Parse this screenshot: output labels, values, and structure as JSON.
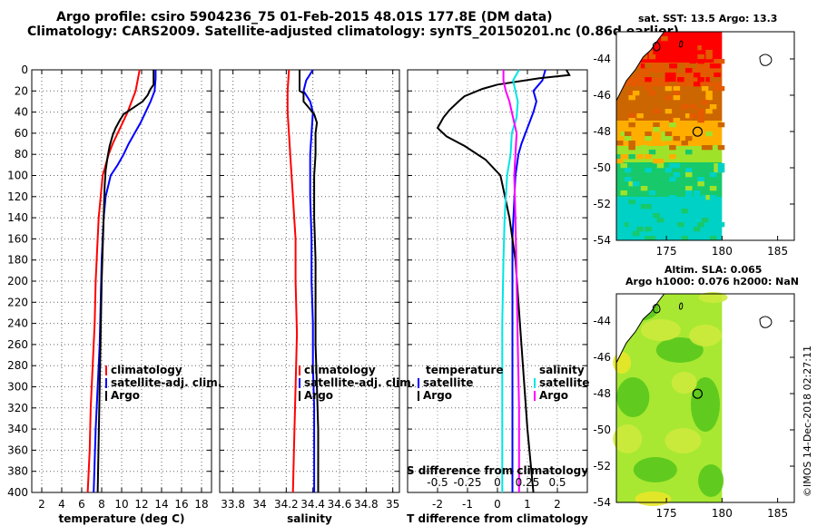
{
  "title": {
    "line1": "Argo profile: csiro 5904236_75 01-Feb-2015 48.01S 177.8E (DM data)",
    "line2": "Climatology: CARS2009. Satellite-adjusted climatology: synTS_20150201.nc (0.86d earlier)"
  },
  "credit": "©IMOS 14-Dec-2018 02:27:11",
  "colors": {
    "climatology": "#ff0000",
    "satellite": "#0000ff",
    "argo": "#000000",
    "sal_satellite": "#00e5e5",
    "sal_clim": "#ff00ff"
  },
  "chart_data": [
    {
      "type": "line",
      "name": "temperature-profile",
      "xlabel": "temperature (deg C)",
      "ylabel": "",
      "xlim": [
        1,
        19
      ],
      "ylim": [
        400,
        0
      ],
      "xticks": [
        2,
        4,
        6,
        8,
        10,
        12,
        14,
        16,
        18
      ],
      "yticks": [
        0,
        20,
        40,
        60,
        80,
        100,
        120,
        140,
        160,
        180,
        200,
        220,
        240,
        260,
        280,
        300,
        320,
        340,
        360,
        380,
        400
      ],
      "grid": true,
      "legend": {
        "position": "lower-right",
        "entries": [
          "climatology",
          "satellite-adj. clim.",
          "Argo"
        ]
      },
      "series": [
        {
          "name": "climatology",
          "color": "#ff0000",
          "points": [
            [
              11.8,
              0
            ],
            [
              11.6,
              10
            ],
            [
              11.4,
              20
            ],
            [
              11.0,
              30
            ],
            [
              10.6,
              40
            ],
            [
              10.1,
              50
            ],
            [
              9.6,
              60
            ],
            [
              9.1,
              70
            ],
            [
              8.7,
              80
            ],
            [
              8.4,
              90
            ],
            [
              8.1,
              100
            ],
            [
              7.9,
              120
            ],
            [
              7.7,
              140
            ],
            [
              7.6,
              160
            ],
            [
              7.5,
              180
            ],
            [
              7.4,
              200
            ],
            [
              7.3,
              240
            ],
            [
              7.1,
              280
            ],
            [
              6.9,
              320
            ],
            [
              6.8,
              360
            ],
            [
              6.6,
              400
            ]
          ]
        },
        {
          "name": "satellite-adj. clim.",
          "color": "#0000ff",
          "points": [
            [
              13.4,
              0
            ],
            [
              13.4,
              8
            ],
            [
              13.3,
              20
            ],
            [
              12.9,
              30
            ],
            [
              12.4,
              40
            ],
            [
              11.9,
              50
            ],
            [
              11.3,
              60
            ],
            [
              10.7,
              70
            ],
            [
              10.2,
              80
            ],
            [
              9.6,
              90
            ],
            [
              8.9,
              100
            ],
            [
              8.4,
              120
            ],
            [
              8.2,
              140
            ],
            [
              8.1,
              160
            ],
            [
              8.0,
              180
            ],
            [
              7.9,
              220
            ],
            [
              7.8,
              260
            ],
            [
              7.6,
              300
            ],
            [
              7.4,
              340
            ],
            [
              7.3,
              370
            ],
            [
              7.2,
              400
            ]
          ]
        },
        {
          "name": "Argo",
          "color": "#000000",
          "points": [
            [
              13.2,
              0
            ],
            [
              13.2,
              14
            ],
            [
              12.9,
              18
            ],
            [
              12.6,
              24
            ],
            [
              12.1,
              30
            ],
            [
              11.0,
              37
            ],
            [
              10.2,
              42
            ],
            [
              9.8,
              48
            ],
            [
              9.4,
              55
            ],
            [
              9.1,
              62
            ],
            [
              8.8,
              72
            ],
            [
              8.6,
              82
            ],
            [
              8.4,
              95
            ],
            [
              8.3,
              110
            ],
            [
              8.2,
              140
            ],
            [
              8.1,
              170
            ],
            [
              8.0,
              200
            ],
            [
              7.9,
              250
            ],
            [
              7.8,
              300
            ],
            [
              7.7,
              350
            ],
            [
              7.6,
              400
            ]
          ]
        }
      ]
    },
    {
      "type": "line",
      "name": "salinity-profile",
      "xlabel": "salinity",
      "ylabel": "",
      "xlim": [
        33.7,
        35.05
      ],
      "ylim": [
        400,
        0
      ],
      "xticks": [
        33.8,
        34,
        34.2,
        34.4,
        34.6,
        34.8,
        35
      ],
      "xticklabels": [
        "33.8",
        "34",
        "34.2",
        "34.4",
        "34.6",
        "34.8",
        "35"
      ],
      "grid": true,
      "legend": {
        "position": "lower-right",
        "entries": [
          "climatology",
          "satellite-adj. clim.",
          "Argo"
        ]
      },
      "series": [
        {
          "name": "climatology",
          "color": "#ff0000",
          "points": [
            [
              34.22,
              0
            ],
            [
              34.21,
              20
            ],
            [
              34.21,
              40
            ],
            [
              34.22,
              60
            ],
            [
              34.23,
              80
            ],
            [
              34.24,
              100
            ],
            [
              34.25,
              120
            ],
            [
              34.26,
              140
            ],
            [
              34.27,
              160
            ],
            [
              34.27,
              200
            ],
            [
              34.28,
              250
            ],
            [
              34.27,
              300
            ],
            [
              34.26,
              350
            ],
            [
              34.25,
              400
            ]
          ]
        },
        {
          "name": "satellite-adj. clim.",
          "color": "#0000ff",
          "points": [
            [
              34.4,
              0
            ],
            [
              34.35,
              10
            ],
            [
              34.33,
              20
            ],
            [
              34.38,
              30
            ],
            [
              34.4,
              40
            ],
            [
              34.39,
              60
            ],
            [
              34.38,
              80
            ],
            [
              34.38,
              120
            ],
            [
              34.39,
              160
            ],
            [
              34.39,
              200
            ],
            [
              34.4,
              240
            ],
            [
              34.4,
              280
            ],
            [
              34.41,
              320
            ],
            [
              34.41,
              360
            ],
            [
              34.41,
              400
            ]
          ]
        },
        {
          "name": "Argo",
          "color": "#000000",
          "points": [
            [
              34.3,
              0
            ],
            [
              34.3,
              20
            ],
            [
              34.33,
              22
            ],
            [
              34.33,
              30
            ],
            [
              34.37,
              36
            ],
            [
              34.41,
              42
            ],
            [
              34.43,
              50
            ],
            [
              34.42,
              60
            ],
            [
              34.42,
              80
            ],
            [
              34.41,
              100
            ],
            [
              34.41,
              140
            ],
            [
              34.42,
              180
            ],
            [
              34.42,
              220
            ],
            [
              34.42,
              260
            ],
            [
              34.43,
              300
            ],
            [
              34.44,
              340
            ],
            [
              34.44,
              380
            ],
            [
              34.44,
              400
            ]
          ]
        }
      ]
    },
    {
      "type": "line",
      "name": "difference-from-climatology",
      "xlabel": "T difference from climatology",
      "x2label": "S difference from climatology",
      "ylabel": "",
      "xlim": [
        -3,
        3
      ],
      "x2lim": [
        -0.75,
        0.75
      ],
      "ylim": [
        400,
        0
      ],
      "xticks": [
        -2,
        -1,
        0,
        1,
        2
      ],
      "x2ticks": [
        -0.5,
        -0.25,
        0,
        0.25,
        0.5
      ],
      "x2ticklabels": [
        "-0.5",
        "-0.25",
        "0",
        "0.25",
        "0.5"
      ],
      "grid": true,
      "legend": {
        "position": "lower-right",
        "temperature_title": "temperature",
        "salinity_title": "salinity",
        "entries": [
          "satellite",
          "Argo"
        ]
      },
      "series": [
        {
          "name": "T satellite",
          "color": "#0000ff",
          "points": [
            [
              1.6,
              0
            ],
            [
              1.5,
              10
            ],
            [
              1.2,
              20
            ],
            [
              1.3,
              30
            ],
            [
              1.2,
              40
            ],
            [
              1.0,
              55
            ],
            [
              0.8,
              70
            ],
            [
              0.7,
              80
            ],
            [
              0.6,
              100
            ],
            [
              0.5,
              160
            ],
            [
              0.5,
              250
            ],
            [
              0.5,
              400
            ]
          ]
        },
        {
          "name": "T Argo",
          "color": "#000000",
          "points": [
            [
              2.3,
              0
            ],
            [
              2.4,
              5
            ],
            [
              1.4,
              8
            ],
            [
              0.0,
              14
            ],
            [
              -0.5,
              18
            ],
            [
              -1.1,
              25
            ],
            [
              -1.3,
              30
            ],
            [
              -1.6,
              38
            ],
            [
              -1.8,
              45
            ],
            [
              -2.0,
              55
            ],
            [
              -1.7,
              63
            ],
            [
              -1.1,
              72
            ],
            [
              -0.4,
              85
            ],
            [
              0.1,
              100
            ],
            [
              0.4,
              140
            ],
            [
              0.6,
              180
            ],
            [
              0.7,
              220
            ],
            [
              0.8,
              260
            ],
            [
              0.9,
              300
            ],
            [
              1.0,
              340
            ],
            [
              1.1,
              370
            ],
            [
              1.2,
              400
            ]
          ]
        },
        {
          "name": "S satellite",
          "color": "#00e5e5",
          "points": [
            [
              0.18,
              0
            ],
            [
              0.13,
              10
            ],
            [
              0.15,
              20
            ],
            [
              0.17,
              30
            ],
            [
              0.16,
              45
            ],
            [
              0.12,
              60
            ],
            [
              0.11,
              80
            ],
            [
              0.08,
              100
            ],
            [
              0.06,
              140
            ],
            [
              0.05,
              180
            ],
            [
              0.04,
              240
            ],
            [
              0.04,
              300
            ],
            [
              0.04,
              350
            ],
            [
              0.04,
              400
            ]
          ]
        },
        {
          "name": "S Argo",
          "color": "#ff00ff",
          "points": [
            [
              0.05,
              0
            ],
            [
              0.05,
              10
            ],
            [
              0.07,
              20
            ],
            [
              0.1,
              30
            ],
            [
              0.12,
              40
            ],
            [
              0.16,
              60
            ],
            [
              0.15,
              80
            ],
            [
              0.14,
              100
            ],
            [
              0.15,
              140
            ],
            [
              0.16,
              200
            ],
            [
              0.17,
              260
            ],
            [
              0.18,
              320
            ],
            [
              0.18,
              400
            ]
          ]
        }
      ]
    }
  ],
  "maps": {
    "sst": {
      "title": "sat. SST: 13.5 Argo: 13.3",
      "xticks": [
        175,
        180,
        185
      ],
      "yticks": [
        -44,
        -46,
        -48,
        -50,
        -52,
        -54
      ],
      "xlim": [
        170.5,
        186.5
      ],
      "ylim": [
        -54,
        -42.5
      ],
      "argo_lon": 177.8,
      "argo_lat": -48.01,
      "colors": {
        "band1": "#ff0000",
        "band2": "#e35a00",
        "band3": "#cc6600",
        "band4": "#ffae00",
        "band5": "#9fe22a",
        "band6": "#17c96b",
        "band7": "#00d1c6"
      }
    },
    "sla": {
      "title1": "Altim. SLA: 0.065",
      "title2": "Argo h1000: 0.076 h2000: NaN",
      "xticks": [
        175,
        180,
        185
      ],
      "yticks": [
        -44,
        -46,
        -48,
        -50,
        -52,
        -54
      ],
      "xlim": [
        170.5,
        186.5
      ],
      "ylim": [
        -54,
        -42.5
      ],
      "argo_lon": 177.8,
      "argo_lat": -48.01,
      "colors": {
        "base": "#a8e832",
        "dark": "#58c81c",
        "light": "#cdea3c",
        "yellow": "#e8e628"
      }
    }
  }
}
